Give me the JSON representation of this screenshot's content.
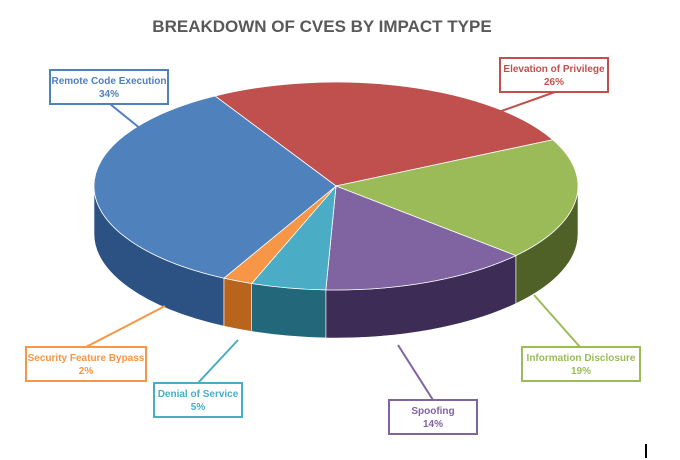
{
  "chart_data": {
    "type": "pie",
    "title": "BREAKDOWN OF CVES BY IMPACT TYPE",
    "slices": [
      {
        "label": "Elevation of Privilege",
        "percent": 26,
        "value_label": "26%",
        "color": "#C0504D",
        "side_color": "#7a2f2d",
        "label_color": "#C0504D"
      },
      {
        "label": "Information Disclosure",
        "percent": 19,
        "value_label": "19%",
        "color": "#9BBB59",
        "side_color": "#4f6127",
        "label_color": "#9BBB59"
      },
      {
        "label": "Spoofing",
        "percent": 14,
        "value_label": "14%",
        "color": "#8064A2",
        "side_color": "#3d2c55",
        "label_color": "#8064A2"
      },
      {
        "label": "Denial of Service",
        "percent": 5,
        "value_label": "5%",
        "color": "#4BACC6",
        "side_color": "#23677a",
        "label_color": "#4BACC6"
      },
      {
        "label": "Security Feature Bypass",
        "percent": 2,
        "value_label": "2%",
        "color": "#F79646",
        "side_color": "#b8641c",
        "label_color": "#F79646"
      },
      {
        "label": "Remote Code Execution",
        "percent": 34,
        "value_label": "34%",
        "color": "#4F81BD",
        "side_color": "#2c5283",
        "label_color": "#4F81BD"
      }
    ]
  }
}
